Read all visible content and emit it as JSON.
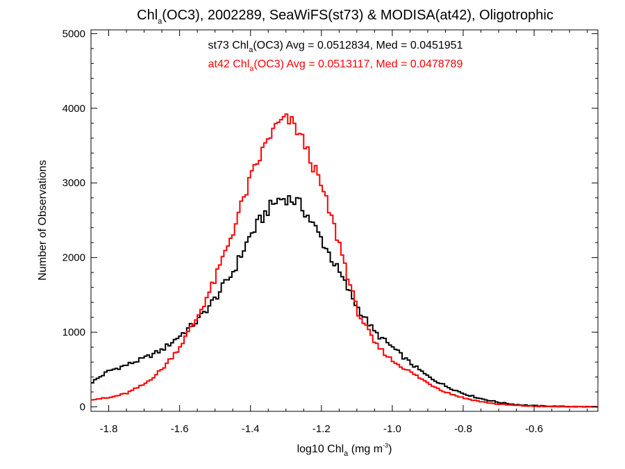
{
  "chart_data": {
    "type": "histogram",
    "title": {
      "pre": "Chl",
      "sub": "a",
      "post": "(OC3), 2002289, SeaWiFS(st73) & MODISA(at42), Oligotrophic"
    },
    "xlabel": {
      "pre": "log10 Chl",
      "sub": "a",
      "mid": " (mg m",
      "sup": "-3",
      "post": ")"
    },
    "ylabel": "Number of Observations",
    "xlim": [
      -1.85,
      -0.42
    ],
    "ylim": [
      -60,
      5050
    ],
    "xticks": [
      -1.8,
      -1.6,
      -1.4,
      -1.2,
      -1.0,
      -0.8,
      -0.6
    ],
    "xtick_labels": [
      "-1.8",
      "-1.6",
      "-1.4",
      "-1.2",
      "-1.0",
      "-0.8",
      "-0.6"
    ],
    "yticks": [
      0,
      1000,
      2000,
      3000,
      4000,
      5000
    ],
    "ytick_labels": [
      "0",
      "1000",
      "2000",
      "3000",
      "4000",
      "5000"
    ],
    "bin_width": 0.0075,
    "grid": false,
    "series": [
      {
        "name": "st73",
        "color": "#000000",
        "legend": {
          "pre": "st73 Chl",
          "sub": "a",
          "post": "(OC3) Avg = 0.0512834, Med = 0.0451951"
        },
        "control_points": [
          [
            -1.85,
            320
          ],
          [
            -1.8,
            480
          ],
          [
            -1.75,
            560
          ],
          [
            -1.7,
            650
          ],
          [
            -1.65,
            760
          ],
          [
            -1.6,
            950
          ],
          [
            -1.55,
            1150
          ],
          [
            -1.5,
            1450
          ],
          [
            -1.45,
            1800
          ],
          [
            -1.4,
            2300
          ],
          [
            -1.35,
            2650
          ],
          [
            -1.32,
            2780
          ],
          [
            -1.3,
            2800
          ],
          [
            -1.27,
            2750
          ],
          [
            -1.25,
            2650
          ],
          [
            -1.2,
            2250
          ],
          [
            -1.15,
            1800
          ],
          [
            -1.1,
            1350
          ],
          [
            -1.05,
            1000
          ],
          [
            -1.0,
            800
          ],
          [
            -0.95,
            590
          ],
          [
            -0.9,
            410
          ],
          [
            -0.85,
            280
          ],
          [
            -0.8,
            180
          ],
          [
            -0.75,
            110
          ],
          [
            -0.7,
            60
          ],
          [
            -0.65,
            30
          ],
          [
            -0.6,
            15
          ],
          [
            -0.55,
            8
          ],
          [
            -0.5,
            4
          ],
          [
            -0.42,
            0
          ]
        ]
      },
      {
        "name": "at42",
        "color": "#ff0000",
        "legend": {
          "pre": "at42 Chl",
          "sub": "a",
          "post": "(OC3) Avg = 0.0513117, Med = 0.0478789"
        },
        "control_points": [
          [
            -1.85,
            100
          ],
          [
            -1.8,
            120
          ],
          [
            -1.75,
            180
          ],
          [
            -1.7,
            300
          ],
          [
            -1.65,
            500
          ],
          [
            -1.6,
            800
          ],
          [
            -1.55,
            1200
          ],
          [
            -1.5,
            1700
          ],
          [
            -1.45,
            2350
          ],
          [
            -1.4,
            3050
          ],
          [
            -1.35,
            3600
          ],
          [
            -1.32,
            3800
          ],
          [
            -1.3,
            3850
          ],
          [
            -1.28,
            3800
          ],
          [
            -1.25,
            3550
          ],
          [
            -1.2,
            2950
          ],
          [
            -1.15,
            2200
          ],
          [
            -1.1,
            1300
          ],
          [
            -1.05,
            850
          ],
          [
            -1.0,
            620
          ],
          [
            -0.95,
            470
          ],
          [
            -0.9,
            320
          ],
          [
            -0.85,
            200
          ],
          [
            -0.8,
            120
          ],
          [
            -0.75,
            70
          ],
          [
            -0.7,
            35
          ],
          [
            -0.65,
            18
          ],
          [
            -0.6,
            8
          ],
          [
            -0.55,
            4
          ],
          [
            -0.5,
            2
          ],
          [
            -0.42,
            0
          ]
        ]
      }
    ]
  }
}
